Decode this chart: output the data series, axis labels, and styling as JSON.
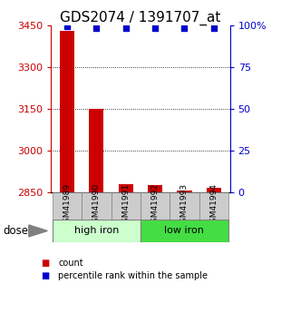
{
  "title": "GDS2074 / 1391707_at",
  "categories": [
    "GSM41989",
    "GSM41990",
    "GSM41991",
    "GSM41992",
    "GSM41993",
    "GSM41994"
  ],
  "bar_values": [
    3430,
    3150,
    2880,
    2878,
    2858,
    2868
  ],
  "percentile_values": [
    99,
    98,
    98,
    98,
    98,
    98
  ],
  "ylim_left": [
    2850,
    3450
  ],
  "ylim_right": [
    0,
    100
  ],
  "yticks_left": [
    2850,
    3000,
    3150,
    3300,
    3450
  ],
  "yticks_right": [
    0,
    25,
    50,
    75,
    100
  ],
  "ytick_labels_right": [
    "0",
    "25",
    "50",
    "75",
    "100%"
  ],
  "grid_values": [
    3000,
    3150,
    3300
  ],
  "bar_color": "#cc0000",
  "dot_color": "#0000cc",
  "group1_label": "high iron",
  "group2_label": "low iron",
  "group1_color": "#ccffcc",
  "group2_color": "#44dd44",
  "dose_label": "dose",
  "legend_count_label": "count",
  "legend_pct_label": "percentile rank within the sample",
  "title_fontsize": 11,
  "tick_fontsize": 8,
  "axis_color_left": "#cc0000",
  "axis_color_right": "#0000cc",
  "bar_width": 0.5,
  "background_color": "#ffffff",
  "xtick_bg_color": "#cccccc",
  "xtick_fontsize": 6.5
}
